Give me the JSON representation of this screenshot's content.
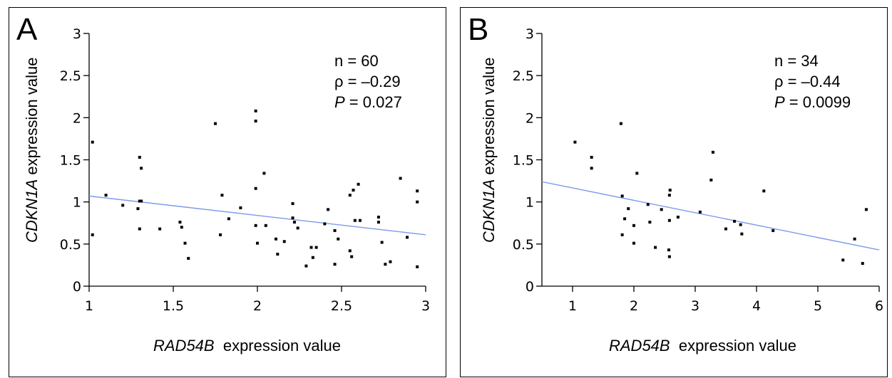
{
  "chart_data": [
    {
      "panel": "A",
      "type": "scatter",
      "xlabel_gene": "RAD54B",
      "xlabel_rest": "expression value",
      "ylabel_gene": "CDKN1A",
      "ylabel_rest": "expression value",
      "xlim": [
        1,
        3
      ],
      "ylim": [
        0,
        3
      ],
      "xticks": [
        1,
        1.5,
        2,
        2.5,
        3
      ],
      "xtick_labels": [
        "1",
        "1.5",
        "2",
        "2.5",
        "3"
      ],
      "yticks": [
        0,
        0.5,
        1,
        1.5,
        2,
        2.5,
        3
      ],
      "ytick_labels": [
        "0",
        "0.5",
        "1",
        "1.5",
        "2",
        "2.5",
        "3"
      ],
      "stats": {
        "n": "n = 60",
        "rho": "ρ = –0.29",
        "p_symbol": "P",
        "p_value": " = 0.027"
      },
      "points": [
        [
          1.02,
          1.71
        ],
        [
          1.02,
          0.61
        ],
        [
          1.1,
          1.08
        ],
        [
          1.2,
          0.96
        ],
        [
          1.29,
          0.92
        ],
        [
          1.3,
          1.53
        ],
        [
          1.31,
          1.4
        ],
        [
          1.31,
          1.01
        ],
        [
          1.3,
          1.01
        ],
        [
          1.3,
          0.68
        ],
        [
          1.42,
          0.68
        ],
        [
          1.54,
          0.76
        ],
        [
          1.55,
          0.7
        ],
        [
          1.57,
          0.51
        ],
        [
          1.59,
          0.33
        ],
        [
          1.75,
          1.93
        ],
        [
          1.79,
          1.08
        ],
        [
          1.78,
          0.61
        ],
        [
          1.83,
          0.8
        ],
        [
          1.9,
          0.93
        ],
        [
          1.99,
          2.08
        ],
        [
          1.99,
          1.96
        ],
        [
          1.99,
          1.16
        ],
        [
          1.99,
          0.72
        ],
        [
          2.0,
          0.51
        ],
        [
          2.04,
          1.34
        ],
        [
          2.05,
          0.72
        ],
        [
          2.11,
          0.56
        ],
        [
          2.12,
          0.38
        ],
        [
          2.16,
          0.53
        ],
        [
          2.21,
          0.98
        ],
        [
          2.21,
          0.81
        ],
        [
          2.22,
          0.76
        ],
        [
          2.24,
          0.69
        ],
        [
          2.29,
          0.24
        ],
        [
          2.32,
          0.46
        ],
        [
          2.35,
          0.46
        ],
        [
          2.33,
          0.34
        ],
        [
          2.4,
          0.74
        ],
        [
          2.42,
          0.91
        ],
        [
          2.46,
          0.66
        ],
        [
          2.46,
          0.26
        ],
        [
          2.48,
          0.56
        ],
        [
          2.55,
          1.08
        ],
        [
          2.57,
          1.14
        ],
        [
          2.6,
          1.21
        ],
        [
          2.55,
          0.42
        ],
        [
          2.56,
          0.35
        ],
        [
          2.58,
          0.78
        ],
        [
          2.61,
          0.78
        ],
        [
          2.72,
          0.82
        ],
        [
          2.72,
          0.76
        ],
        [
          2.74,
          0.52
        ],
        [
          2.76,
          0.26
        ],
        [
          2.79,
          0.29
        ],
        [
          2.85,
          1.28
        ],
        [
          2.89,
          0.58
        ],
        [
          2.95,
          1.13
        ],
        [
          2.95,
          1.0
        ],
        [
          2.95,
          0.23
        ]
      ],
      "trend": {
        "from": [
          1,
          1.07
        ],
        "to": [
          3,
          0.61
        ]
      },
      "trend_color": "#7b9be8",
      "point_color": "#000000"
    },
    {
      "panel": "B",
      "type": "scatter",
      "xlabel_gene": "RAD54B",
      "xlabel_rest": "expression value",
      "ylabel_gene": "CDKN1A",
      "ylabel_rest": "expression value",
      "xlim": [
        0.5,
        6
      ],
      "ylim": [
        0,
        3
      ],
      "xticks": [
        1,
        2,
        3,
        4,
        5,
        6
      ],
      "xtick_labels": [
        "1",
        "2",
        "3",
        "4",
        "5",
        "6"
      ],
      "yticks": [
        0,
        0.5,
        1,
        1.5,
        2,
        2.5,
        3
      ],
      "ytick_labels": [
        "0",
        "0.5",
        "1",
        "1.5",
        "2",
        "2.5",
        "3"
      ],
      "stats": {
        "n": "n = 34",
        "rho": "ρ = –0.44",
        "p_symbol": "P",
        "p_value": " = 0.0099"
      },
      "points": [
        [
          1.04,
          1.71
        ],
        [
          1.31,
          1.53
        ],
        [
          1.31,
          1.4
        ],
        [
          1.79,
          1.93
        ],
        [
          1.81,
          1.07
        ],
        [
          1.85,
          0.8
        ],
        [
          1.81,
          0.61
        ],
        [
          1.91,
          0.92
        ],
        [
          2.0,
          0.72
        ],
        [
          2.0,
          0.51
        ],
        [
          2.05,
          1.34
        ],
        [
          2.23,
          0.97
        ],
        [
          2.26,
          0.76
        ],
        [
          2.35,
          0.46
        ],
        [
          2.45,
          0.91
        ],
        [
          2.57,
          0.43
        ],
        [
          2.58,
          0.35
        ],
        [
          2.59,
          1.14
        ],
        [
          2.58,
          1.08
        ],
        [
          2.58,
          0.78
        ],
        [
          2.72,
          0.82
        ],
        [
          3.08,
          0.88
        ],
        [
          3.26,
          1.26
        ],
        [
          3.29,
          1.59
        ],
        [
          3.5,
          0.68
        ],
        [
          3.64,
          0.77
        ],
        [
          3.74,
          0.73
        ],
        [
          3.76,
          0.62
        ],
        [
          4.12,
          1.13
        ],
        [
          4.27,
          0.66
        ],
        [
          5.41,
          0.31
        ],
        [
          5.6,
          0.56
        ],
        [
          5.73,
          0.27
        ],
        [
          5.79,
          0.91
        ]
      ],
      "trend": {
        "from": [
          0.5,
          1.24
        ],
        "to": [
          6,
          0.43
        ]
      },
      "trend_color": "#7b9be8",
      "point_color": "#000000"
    }
  ]
}
